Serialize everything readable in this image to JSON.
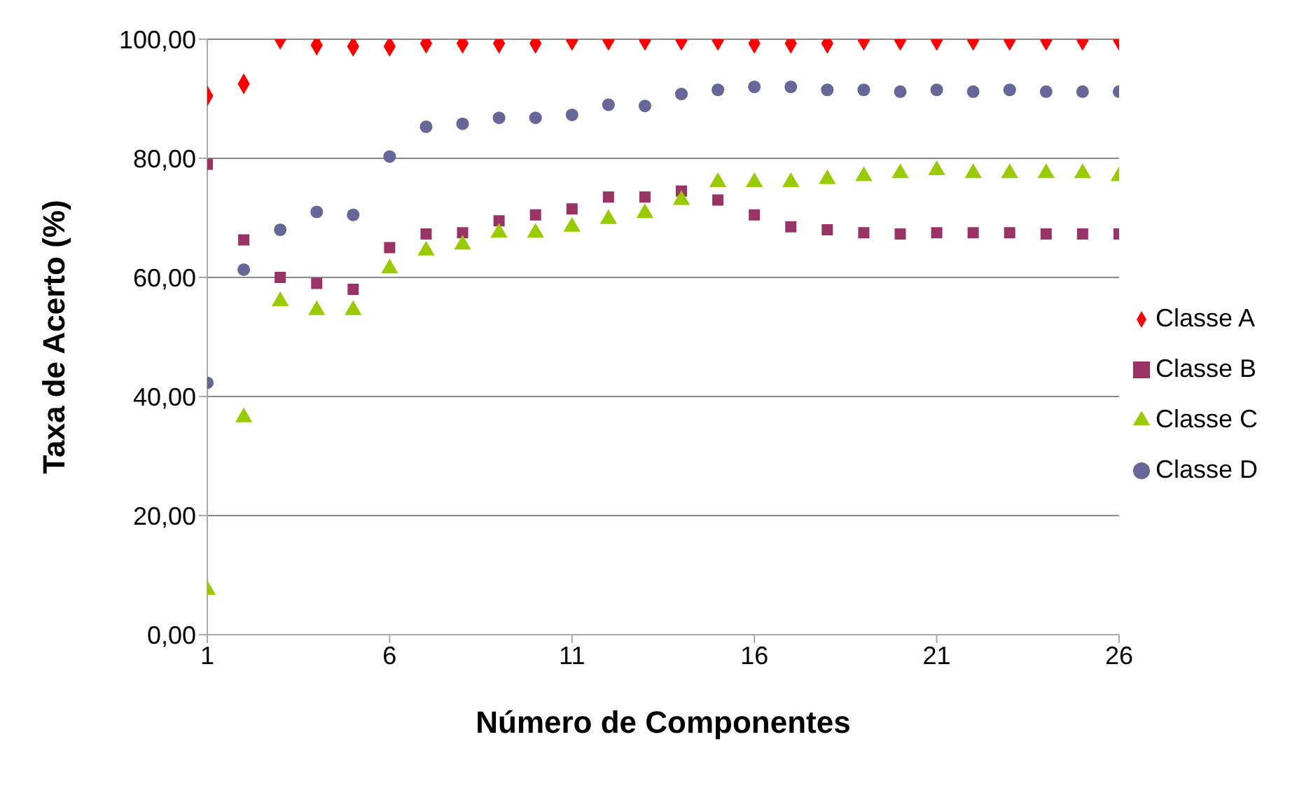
{
  "chart_data": {
    "type": "scatter",
    "xlabel": "Número de Componentes",
    "ylabel": "Taxa de Acerto (%)",
    "x": [
      1,
      2,
      3,
      4,
      5,
      6,
      7,
      8,
      9,
      10,
      11,
      12,
      13,
      14,
      15,
      16,
      17,
      18,
      19,
      20,
      21,
      22,
      23,
      24,
      25,
      26
    ],
    "xlim": [
      1,
      26
    ],
    "xticks": [
      1,
      6,
      11,
      16,
      21,
      26
    ],
    "ylim": [
      0,
      100
    ],
    "yticks": [
      {
        "value": 0,
        "label": "0,00"
      },
      {
        "value": 20,
        "label": "20,00"
      },
      {
        "value": 40,
        "label": "40,00"
      },
      {
        "value": 60,
        "label": "60,00"
      },
      {
        "value": 80,
        "label": "80,00"
      },
      {
        "value": 100,
        "label": "100,00"
      }
    ],
    "grid": "y",
    "legend": "right",
    "series": [
      {
        "name": "Classe A",
        "color": "#ff0000",
        "marker": "diamond",
        "values": [
          90.5,
          92.5,
          100,
          99,
          98.8,
          98.8,
          99.3,
          99.3,
          99.3,
          99.3,
          99.8,
          99.8,
          99.8,
          99.8,
          99.8,
          99.3,
          99.3,
          99.3,
          99.8,
          99.8,
          99.8,
          99.8,
          99.8,
          99.8,
          99.8,
          99.8
        ]
      },
      {
        "name": "Classe B",
        "color": "#993366",
        "marker": "square",
        "values": [
          79,
          66.3,
          60,
          59,
          58,
          65,
          67.3,
          67.5,
          69.5,
          70.5,
          71.5,
          73.5,
          73.5,
          74.5,
          73,
          70.5,
          68.5,
          68,
          67.5,
          67.3,
          67.5,
          67.5,
          67.5,
          67.3,
          67.3,
          67.3
        ]
      },
      {
        "name": "Classe C",
        "color": "#99cc00",
        "marker": "triangle",
        "values": [
          7.5,
          36.5,
          56,
          54.5,
          54.5,
          61.5,
          64.5,
          65.5,
          67.5,
          67.5,
          68.5,
          69.8,
          70.8,
          73,
          76,
          76,
          76,
          76.5,
          77,
          77.5,
          78,
          77.5,
          77.5,
          77.5,
          77.5,
          77
        ]
      },
      {
        "name": "Classe D",
        "color": "#666699",
        "marker": "circle",
        "values": [
          42.3,
          61.3,
          68,
          71,
          70.5,
          80.3,
          85.3,
          85.8,
          86.8,
          86.8,
          87.3,
          89,
          88.8,
          90.8,
          91.5,
          92,
          92,
          91.5,
          91.5,
          91.2,
          91.5,
          91.2,
          91.5,
          91.2,
          91.2,
          91.2
        ]
      }
    ]
  }
}
